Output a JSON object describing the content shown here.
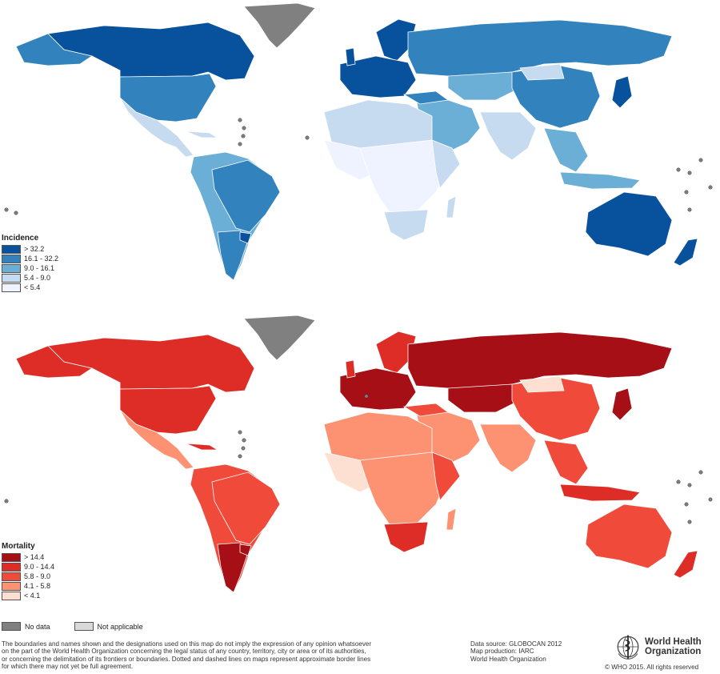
{
  "incidence_legend": {
    "title": "Incidence",
    "items": [
      {
        "label": "> 32.2",
        "color": "#08519c"
      },
      {
        "label": "16.1 - 32.2",
        "color": "#3182bd"
      },
      {
        "label": "9.0 - 16.1",
        "color": "#6baed6"
      },
      {
        "label": "5.4 - 9.0",
        "color": "#c6dbef"
      },
      {
        "label": "< 5.4",
        "color": "#eff3ff"
      }
    ]
  },
  "mortality_legend": {
    "title": "Mortality",
    "items": [
      {
        "label": "> 14.4",
        "color": "#a50f15"
      },
      {
        "label": "9.0 - 14.4",
        "color": "#de2d26"
      },
      {
        "label": "5.8 - 9.0",
        "color": "#ef4a3a"
      },
      {
        "label": "4.1 - 5.8",
        "color": "#fc9272"
      },
      {
        "label": "< 4.1",
        "color": "#fee0d2"
      }
    ]
  },
  "status_legend": {
    "no_data": {
      "label": "No data",
      "color": "#808080"
    },
    "not_applicable": {
      "label": "Not applicable",
      "color": "#d9d9d9"
    }
  },
  "footer": {
    "disclaimer": [
      "The boundaries and names shown and the designations used on this map do not imply the expression of any opinion whatsoever",
      "on the part of the World Health Organization concerning the legal status of any country, territory, city or area or of its authorities,",
      "or concerning the delimitation of its frontiers or boundaries. Dotted and dashed lines on maps represent approximate border lines",
      "for which there may not yet be full agreement."
    ],
    "source": [
      "Data source: GLOBOCAN 2012",
      "Map production: IARC",
      "World Health Organization"
    ],
    "logo_name_line1": "World Health",
    "logo_name_line2": "Organization",
    "copyright": "© WHO 2015. All rights reserved"
  }
}
